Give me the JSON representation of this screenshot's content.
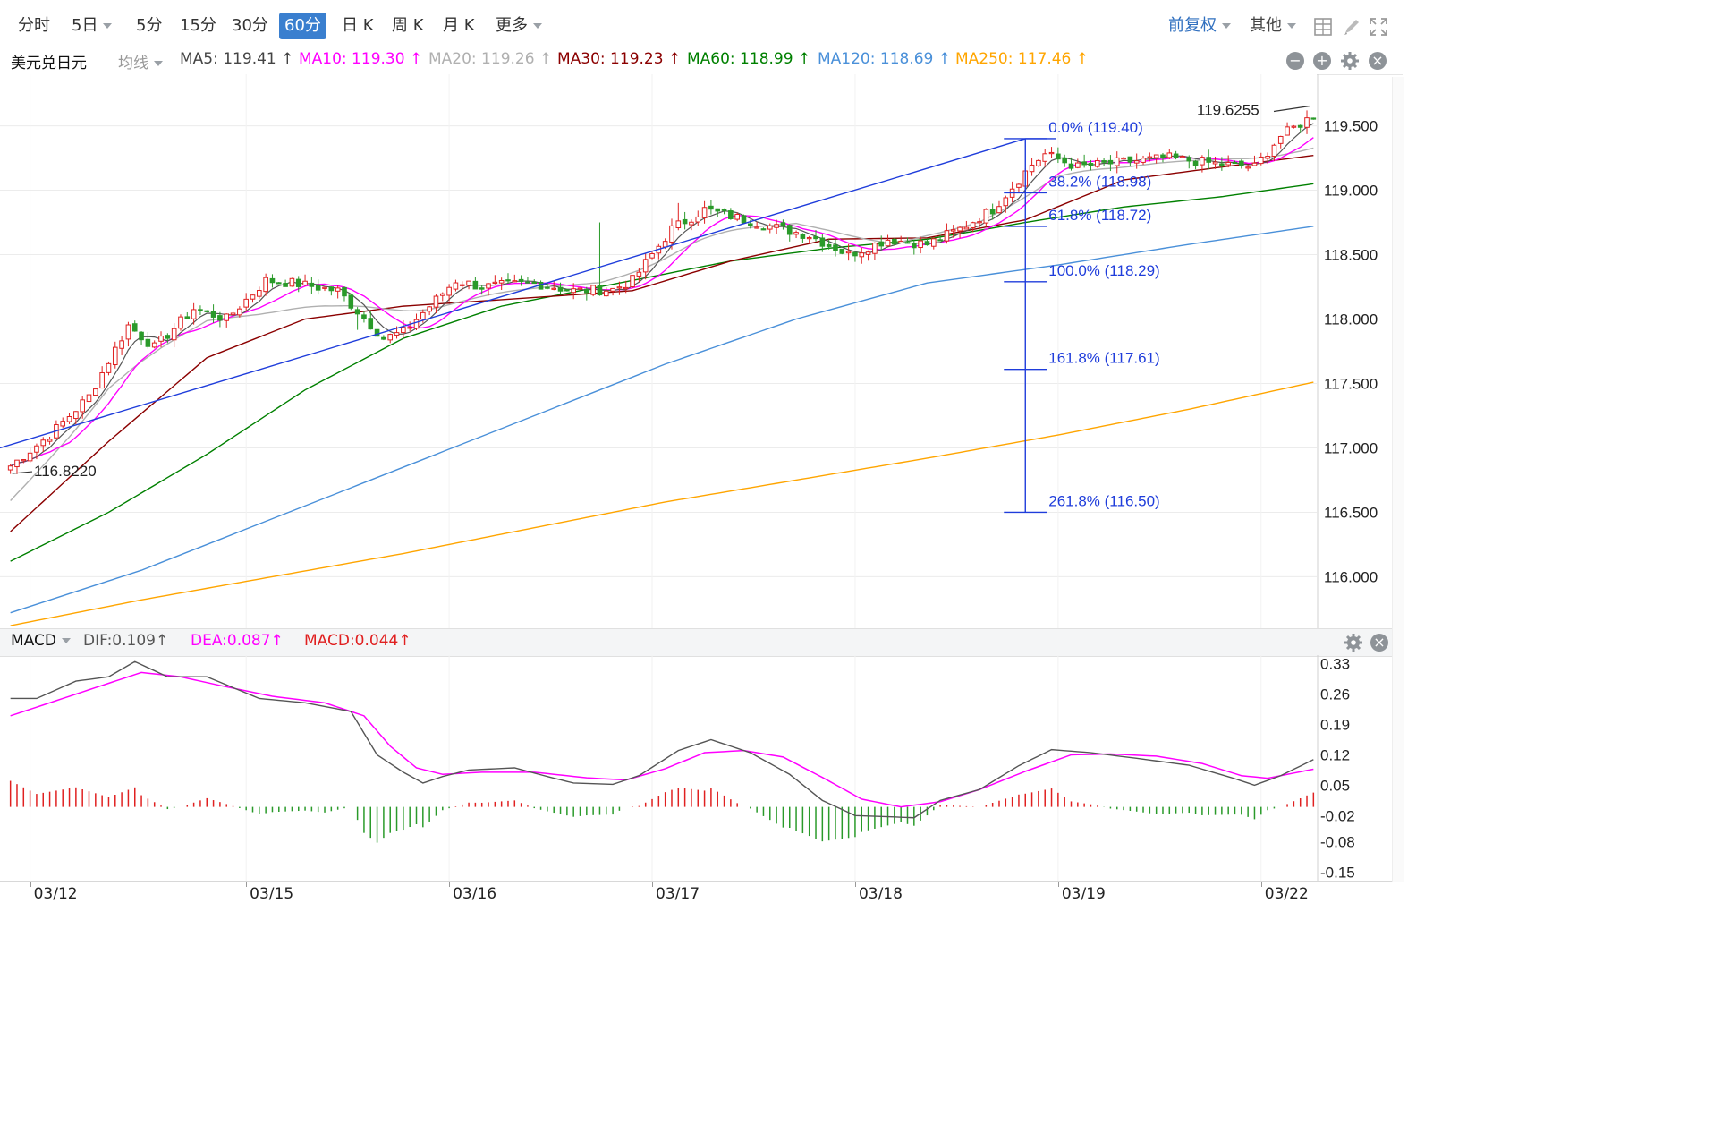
{
  "toolbar": {
    "periods": [
      "分时",
      "5日",
      "5分",
      "15分",
      "30分",
      "60分",
      "日 K",
      "周 K",
      "月 K",
      "更多"
    ],
    "active_period": "60分",
    "adjust": "前复权",
    "other": "其他"
  },
  "symbol": "美元兑日元",
  "indicator_select": "均线",
  "colors": {
    "ma5": "#555555",
    "ma10": "#ff00ff",
    "ma20": "#b0b0b0",
    "ma30": "#8b0000",
    "ma60": "#008000",
    "ma120": "#4a90d9",
    "ma250": "#ffa500",
    "up": "#e02020",
    "down": "#2a9a2a",
    "fib": "#1f3ddb",
    "dea": "#ff00ff",
    "dif": "#555555"
  },
  "ma_legend": [
    {
      "label": "MA5: 119.41 ↑",
      "color": "#444444"
    },
    {
      "label": "MA10: 119.30 ↑",
      "color": "#ff00ff"
    },
    {
      "label": "MA20: 119.26 ↑",
      "color": "#b0b0b0"
    },
    {
      "label": "MA30: 119.23 ↑",
      "color": "#8b0000"
    },
    {
      "label": "MA60: 118.99 ↑",
      "color": "#008000"
    },
    {
      "label": "MA120: 118.69 ↑",
      "color": "#4a90d9"
    },
    {
      "label": "MA250: 117.46 ↑",
      "color": "#ffa500"
    }
  ],
  "macd_legend": {
    "name": "MACD",
    "dif": "DIF:0.109↑",
    "dea": "DEA:0.087↑",
    "macd": "MACD:0.044↑"
  },
  "price_annotations": {
    "high": "119.6255",
    "low": "116.8220"
  },
  "chart_data": [
    {
      "type": "candlestick",
      "title": "美元兑日元 60分",
      "ylim": [
        115.6,
        119.9
      ],
      "y_ticks": [
        "119.500",
        "119.000",
        "118.500",
        "118.000",
        "117.500",
        "117.000",
        "116.500",
        "116.000"
      ],
      "y_tick_values": [
        119.5,
        119.0,
        118.5,
        118.0,
        117.5,
        117.0,
        116.5,
        116.0
      ],
      "x_ticks": [
        "03/12",
        "03/15",
        "03/16",
        "03/17",
        "03/18",
        "03/19",
        "03/22"
      ],
      "x_tick_index": [
        3,
        36,
        67,
        98,
        129,
        160,
        191
      ],
      "n_bars": 200,
      "close_anchors": [
        [
          0,
          116.86
        ],
        [
          6,
          117.1
        ],
        [
          12,
          117.4
        ],
        [
          18,
          117.95
        ],
        [
          22,
          117.78
        ],
        [
          28,
          118.08
        ],
        [
          33,
          118.0
        ],
        [
          39,
          118.3
        ],
        [
          43,
          118.28
        ],
        [
          50,
          118.22
        ],
        [
          57,
          117.85
        ],
        [
          60,
          117.9
        ],
        [
          64,
          118.1
        ],
        [
          68,
          118.3
        ],
        [
          72,
          118.25
        ],
        [
          80,
          118.28
        ],
        [
          86,
          118.22
        ],
        [
          92,
          118.23
        ],
        [
          95,
          118.3
        ],
        [
          101,
          118.7
        ],
        [
          106,
          118.85
        ],
        [
          110,
          118.8
        ],
        [
          116,
          118.72
        ],
        [
          122,
          118.65
        ],
        [
          128,
          118.5
        ],
        [
          134,
          118.62
        ],
        [
          140,
          118.58
        ],
        [
          145,
          118.7
        ],
        [
          150,
          118.85
        ],
        [
          156,
          119.2
        ],
        [
          158,
          119.28
        ],
        [
          163,
          119.18
        ],
        [
          170,
          119.22
        ],
        [
          177,
          119.25
        ],
        [
          185,
          119.2
        ],
        [
          190,
          119.18
        ],
        [
          194,
          119.42
        ],
        [
          199,
          119.58
        ]
      ],
      "ma_series": [
        {
          "name": "MA20",
          "anchors": [
            [
              0,
              116.5
            ],
            [
              15,
              117.5
            ],
            [
              30,
              118.0
            ],
            [
              50,
              118.05
            ],
            [
              70,
              118.15
            ],
            [
              90,
              118.3
            ],
            [
              105,
              118.6
            ],
            [
              120,
              118.75
            ],
            [
              135,
              118.6
            ],
            [
              148,
              118.78
            ],
            [
              160,
              119.1
            ],
            [
              175,
              119.2
            ],
            [
              199,
              119.3
            ]
          ]
        },
        {
          "name": "MA30",
          "anchors": [
            [
              0,
              116.35
            ],
            [
              15,
              117.05
            ],
            [
              30,
              117.7
            ],
            [
              45,
              118.0
            ],
            [
              60,
              118.1
            ],
            [
              75,
              118.15
            ],
            [
              95,
              118.22
            ],
            [
              110,
              118.45
            ],
            [
              125,
              118.62
            ],
            [
              140,
              118.63
            ],
            [
              155,
              118.77
            ],
            [
              170,
              119.08
            ],
            [
              185,
              119.18
            ],
            [
              199,
              119.27
            ]
          ]
        },
        {
          "name": "MA60",
          "anchors": [
            [
              0,
              116.12
            ],
            [
              15,
              116.5
            ],
            [
              30,
              116.95
            ],
            [
              45,
              117.45
            ],
            [
              60,
              117.85
            ],
            [
              75,
              118.1
            ],
            [
              95,
              118.3
            ],
            [
              110,
              118.45
            ],
            [
              125,
              118.55
            ],
            [
              140,
              118.62
            ],
            [
              155,
              118.75
            ],
            [
              170,
              118.87
            ],
            [
              185,
              118.95
            ],
            [
              199,
              119.05
            ]
          ]
        },
        {
          "name": "MA120",
          "anchors": [
            [
              0,
              115.72
            ],
            [
              20,
              116.05
            ],
            [
              40,
              116.45
            ],
            [
              60,
              116.85
            ],
            [
              80,
              117.25
            ],
            [
              100,
              117.65
            ],
            [
              120,
              118.0
            ],
            [
              140,
              118.28
            ],
            [
              160,
              118.42
            ],
            [
              180,
              118.58
            ],
            [
              199,
              118.72
            ]
          ]
        },
        {
          "name": "MA250",
          "anchors": [
            [
              0,
              115.62
            ],
            [
              20,
              115.82
            ],
            [
              40,
              116.0
            ],
            [
              60,
              116.18
            ],
            [
              80,
              116.38
            ],
            [
              100,
              116.58
            ],
            [
              120,
              116.75
            ],
            [
              140,
              116.92
            ],
            [
              160,
              117.1
            ],
            [
              180,
              117.3
            ],
            [
              199,
              117.51
            ]
          ]
        }
      ],
      "trendline": {
        "from": [
          0,
          117.0
        ],
        "to": [
          155,
          119.4
        ]
      },
      "fibonacci": [
        {
          "label": "0.0% (119.40)",
          "value": 119.4
        },
        {
          "label": "38.2% (118.98)",
          "value": 118.98
        },
        {
          "label": "61.8% (118.72)",
          "value": 118.72
        },
        {
          "label": "100.0% (118.29)",
          "value": 118.29
        },
        {
          "label": "161.8% (117.61)",
          "value": 117.61
        },
        {
          "label": "261.8% (116.50)",
          "value": 116.5
        }
      ],
      "fib_bar_index": 155
    },
    {
      "type": "macd",
      "ylim": [
        -0.17,
        0.35
      ],
      "y_ticks": [
        "0.33",
        "0.26",
        "0.19",
        "0.12",
        "0.05",
        "-0.02",
        "-0.08",
        "-0.15"
      ],
      "y_tick_values": [
        0.33,
        0.26,
        0.19,
        0.12,
        0.05,
        -0.02,
        -0.08,
        -0.15
      ],
      "dif_anchors": [
        [
          0,
          0.25
        ],
        [
          4,
          0.25
        ],
        [
          10,
          0.29
        ],
        [
          15,
          0.3
        ],
        [
          19,
          0.335
        ],
        [
          24,
          0.3
        ],
        [
          30,
          0.3
        ],
        [
          38,
          0.25
        ],
        [
          45,
          0.24
        ],
        [
          52,
          0.22
        ],
        [
          56,
          0.12
        ],
        [
          60,
          0.08
        ],
        [
          63,
          0.055
        ],
        [
          66,
          0.07
        ],
        [
          70,
          0.085
        ],
        [
          77,
          0.09
        ],
        [
          82,
          0.07
        ],
        [
          86,
          0.055
        ],
        [
          92,
          0.052
        ],
        [
          96,
          0.072
        ],
        [
          102,
          0.13
        ],
        [
          107,
          0.155
        ],
        [
          113,
          0.125
        ],
        [
          119,
          0.075
        ],
        [
          124,
          0.015
        ],
        [
          129,
          -0.02
        ],
        [
          133,
          -0.022
        ],
        [
          138,
          -0.025
        ],
        [
          142,
          0.015
        ],
        [
          148,
          0.04
        ],
        [
          154,
          0.095
        ],
        [
          159,
          0.132
        ],
        [
          165,
          0.125
        ],
        [
          172,
          0.112
        ],
        [
          180,
          0.096
        ],
        [
          187,
          0.065
        ],
        [
          190,
          0.05
        ],
        [
          194,
          0.072
        ],
        [
          199,
          0.109
        ]
      ],
      "dea_anchors": [
        [
          0,
          0.21
        ],
        [
          8,
          0.25
        ],
        [
          14,
          0.28
        ],
        [
          20,
          0.31
        ],
        [
          26,
          0.3
        ],
        [
          32,
          0.28
        ],
        [
          40,
          0.255
        ],
        [
          48,
          0.24
        ],
        [
          54,
          0.21
        ],
        [
          58,
          0.14
        ],
        [
          62,
          0.09
        ],
        [
          66,
          0.075
        ],
        [
          72,
          0.08
        ],
        [
          80,
          0.08
        ],
        [
          88,
          0.067
        ],
        [
          94,
          0.062
        ],
        [
          100,
          0.088
        ],
        [
          106,
          0.125
        ],
        [
          112,
          0.13
        ],
        [
          118,
          0.115
        ],
        [
          124,
          0.068
        ],
        [
          130,
          0.018
        ],
        [
          136,
          0.0
        ],
        [
          142,
          0.012
        ],
        [
          148,
          0.04
        ],
        [
          155,
          0.082
        ],
        [
          162,
          0.12
        ],
        [
          168,
          0.122
        ],
        [
          175,
          0.117
        ],
        [
          182,
          0.1
        ],
        [
          188,
          0.072
        ],
        [
          192,
          0.066
        ],
        [
          199,
          0.087
        ]
      ]
    }
  ]
}
